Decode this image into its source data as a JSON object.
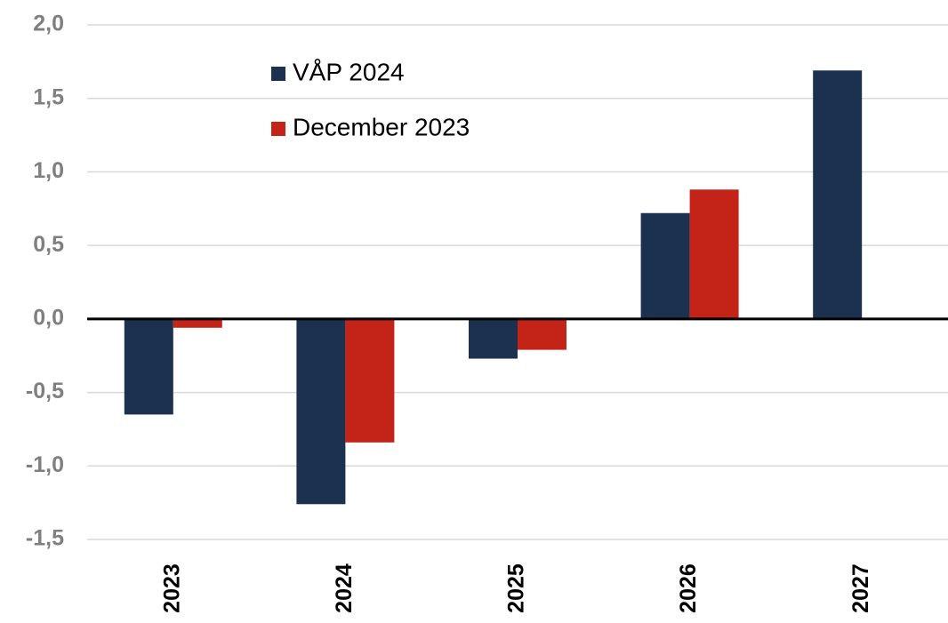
{
  "chart_data": {
    "type": "bar",
    "categories": [
      "2023",
      "2024",
      "2025",
      "2026",
      "2027"
    ],
    "series": [
      {
        "name": "VÅP 2024",
        "color": "#1c3050",
        "values": [
          -0.65,
          -1.26,
          -0.27,
          0.72,
          1.69
        ]
      },
      {
        "name": "December 2023",
        "color": "#c42317",
        "values": [
          -0.06,
          -0.84,
          -0.21,
          0.88,
          null
        ]
      }
    ],
    "ylim": [
      -1.5,
      2.0
    ],
    "yticks": [
      {
        "value": -1.5,
        "label": "-1,5"
      },
      {
        "value": -1.0,
        "label": "-1,0"
      },
      {
        "value": -0.5,
        "label": "-0,5"
      },
      {
        "value": 0,
        "label": "0,0"
      },
      {
        "value": 0.5,
        "label": "0,5"
      },
      {
        "value": 1.0,
        "label": "1,0"
      },
      {
        "value": 1.5,
        "label": "1,5"
      },
      {
        "value": 2.0,
        "label": "2,0"
      }
    ],
    "grid": true
  }
}
